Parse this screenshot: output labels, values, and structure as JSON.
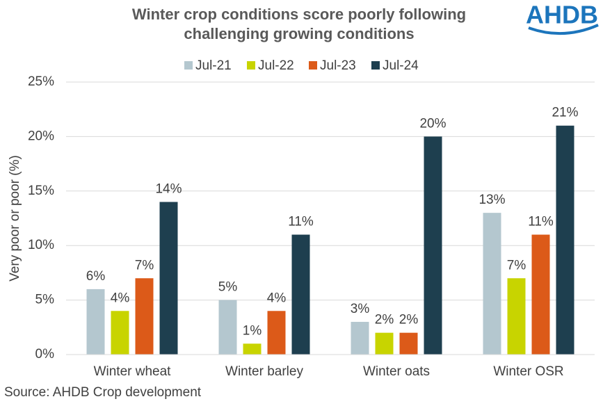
{
  "chart_data": {
    "type": "bar",
    "title": [
      "Winter crop conditions score poorly following",
      "challenging growing conditions"
    ],
    "logo": "AHDB",
    "source": "Source: AHDB Crop development",
    "ylabel": "Very poor or poor (%)",
    "categories": [
      "Winter wheat",
      "Winter barley",
      "Winter oats",
      "Winter OSR"
    ],
    "series": [
      {
        "name": "Jul-21",
        "color": "#b4c7cf",
        "values": [
          6,
          5,
          3,
          13
        ],
        "value_labels": [
          "6%",
          "5%",
          "3%",
          "13%"
        ]
      },
      {
        "name": "Jul-22",
        "color": "#c8d400",
        "values": [
          4,
          1,
          2,
          7
        ],
        "value_labels": [
          "4%",
          "1%",
          "2%",
          "7%"
        ]
      },
      {
        "name": "Jul-23",
        "color": "#dc5a19",
        "values": [
          7,
          4,
          2,
          11
        ],
        "value_labels": [
          "7%",
          "4%",
          "2%",
          "11%"
        ]
      },
      {
        "name": "Jul-24",
        "color": "#1e3f4f",
        "values": [
          14,
          11,
          20,
          21
        ],
        "value_labels": [
          "14%",
          "11%",
          "20%",
          "21%"
        ]
      }
    ],
    "ylim": [
      0,
      25
    ],
    "yticks": [
      {
        "value": 0,
        "label": "0%"
      },
      {
        "value": 5,
        "label": "5%"
      },
      {
        "value": 10,
        "label": "10%"
      },
      {
        "value": 15,
        "label": "15%"
      },
      {
        "value": 20,
        "label": "20%"
      },
      {
        "value": 25,
        "label": "25%"
      }
    ],
    "grid": true
  }
}
